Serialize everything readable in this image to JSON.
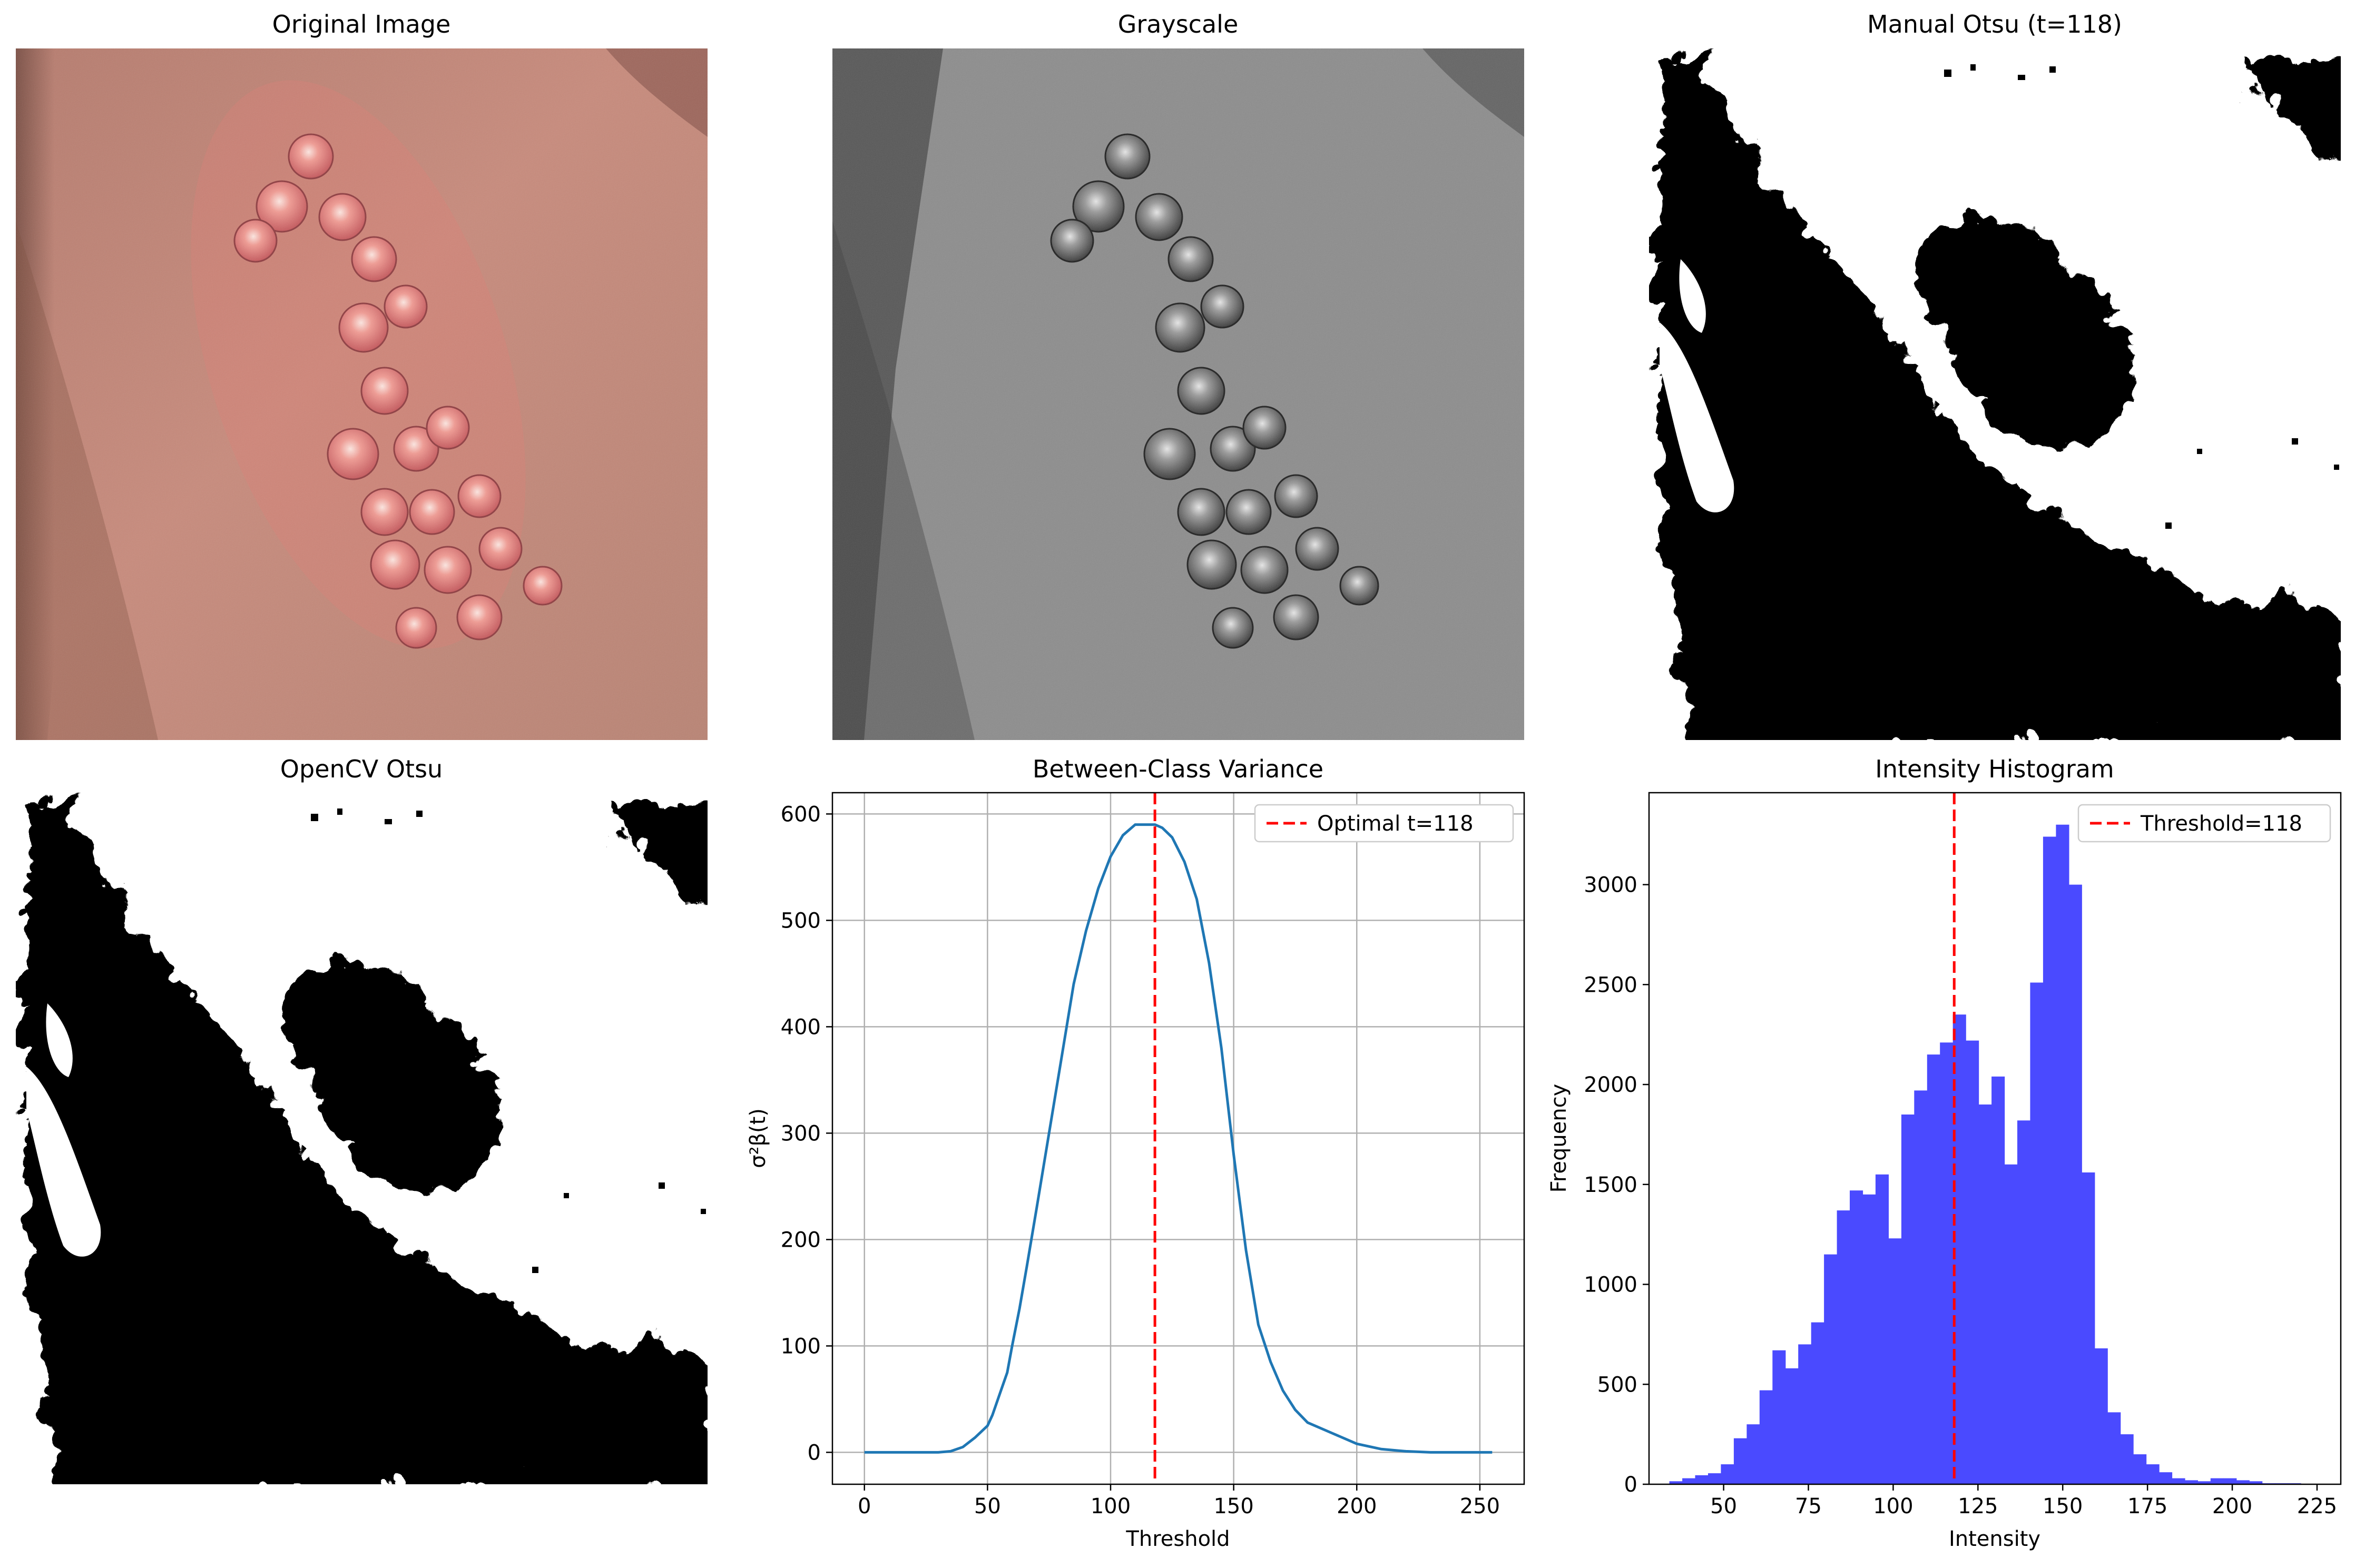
{
  "panels": {
    "original": {
      "title": "Original Image"
    },
    "grayscale": {
      "title": "Grayscale"
    },
    "manual": {
      "title": "Manual Otsu (t=118)"
    },
    "opencv": {
      "title": "OpenCV Otsu"
    }
  },
  "colors": {
    "curve": "#1f77b4",
    "threshold_line": "#ff0000",
    "hist_bar": "#4a4aff",
    "grid": "#b0b0b0",
    "skin": "#c98a7c",
    "lesion": "#e0706a"
  },
  "chart_data": [
    {
      "type": "line",
      "title": "Between-Class Variance",
      "xlabel": "Threshold",
      "ylabel": "σ²β(t)",
      "xlim": [
        -13,
        268
      ],
      "ylim": [
        -30,
        620
      ],
      "xticks": [
        0,
        50,
        100,
        150,
        200,
        250
      ],
      "yticks": [
        0,
        100,
        200,
        300,
        400,
        500,
        600
      ],
      "grid": true,
      "legend_position": "top-right",
      "x": [
        0,
        10,
        20,
        30,
        35,
        40,
        45,
        50,
        52,
        55,
        58,
        60,
        63,
        66,
        70,
        75,
        80,
        85,
        90,
        95,
        100,
        105,
        110,
        115,
        118,
        121,
        125,
        130,
        135,
        140,
        145,
        150,
        155,
        160,
        165,
        170,
        175,
        180,
        190,
        200,
        210,
        215,
        220,
        230,
        240,
        250,
        255
      ],
      "y": [
        0,
        0,
        0,
        0,
        1,
        5,
        14,
        25,
        35,
        55,
        75,
        100,
        135,
        175,
        230,
        300,
        370,
        440,
        490,
        530,
        560,
        580,
        590,
        590,
        590,
        587,
        578,
        555,
        520,
        460,
        380,
        280,
        190,
        120,
        85,
        58,
        40,
        28,
        18,
        8,
        3,
        2,
        1,
        0,
        0,
        0,
        0
      ],
      "vline": {
        "x": 118,
        "label": "Optimal t=118"
      }
    },
    {
      "type": "bar",
      "title": "Intensity Histogram",
      "xlabel": "Intensity",
      "ylabel": "Frequency",
      "xlim": [
        28,
        232
      ],
      "ylim": [
        0,
        3460
      ],
      "xticks": [
        50,
        75,
        100,
        125,
        150,
        175,
        200,
        225
      ],
      "yticks": [
        0,
        500,
        1000,
        1500,
        2000,
        2500,
        3000
      ],
      "grid": false,
      "legend_position": "top-right",
      "bin_start": 34,
      "bin_width": 3.8,
      "values": [
        15,
        30,
        45,
        55,
        100,
        230,
        300,
        470,
        670,
        580,
        700,
        810,
        1150,
        1370,
        1470,
        1450,
        1550,
        1230,
        1850,
        1970,
        2150,
        2210,
        2350,
        2220,
        1900,
        2040,
        1600,
        1820,
        2510,
        3240,
        3300,
        3000,
        1560,
        680,
        360,
        250,
        150,
        100,
        60,
        30,
        20,
        15,
        30,
        30,
        20,
        15,
        5,
        5,
        5
      ],
      "vline": {
        "x": 118,
        "label": "Threshold=118"
      }
    }
  ]
}
